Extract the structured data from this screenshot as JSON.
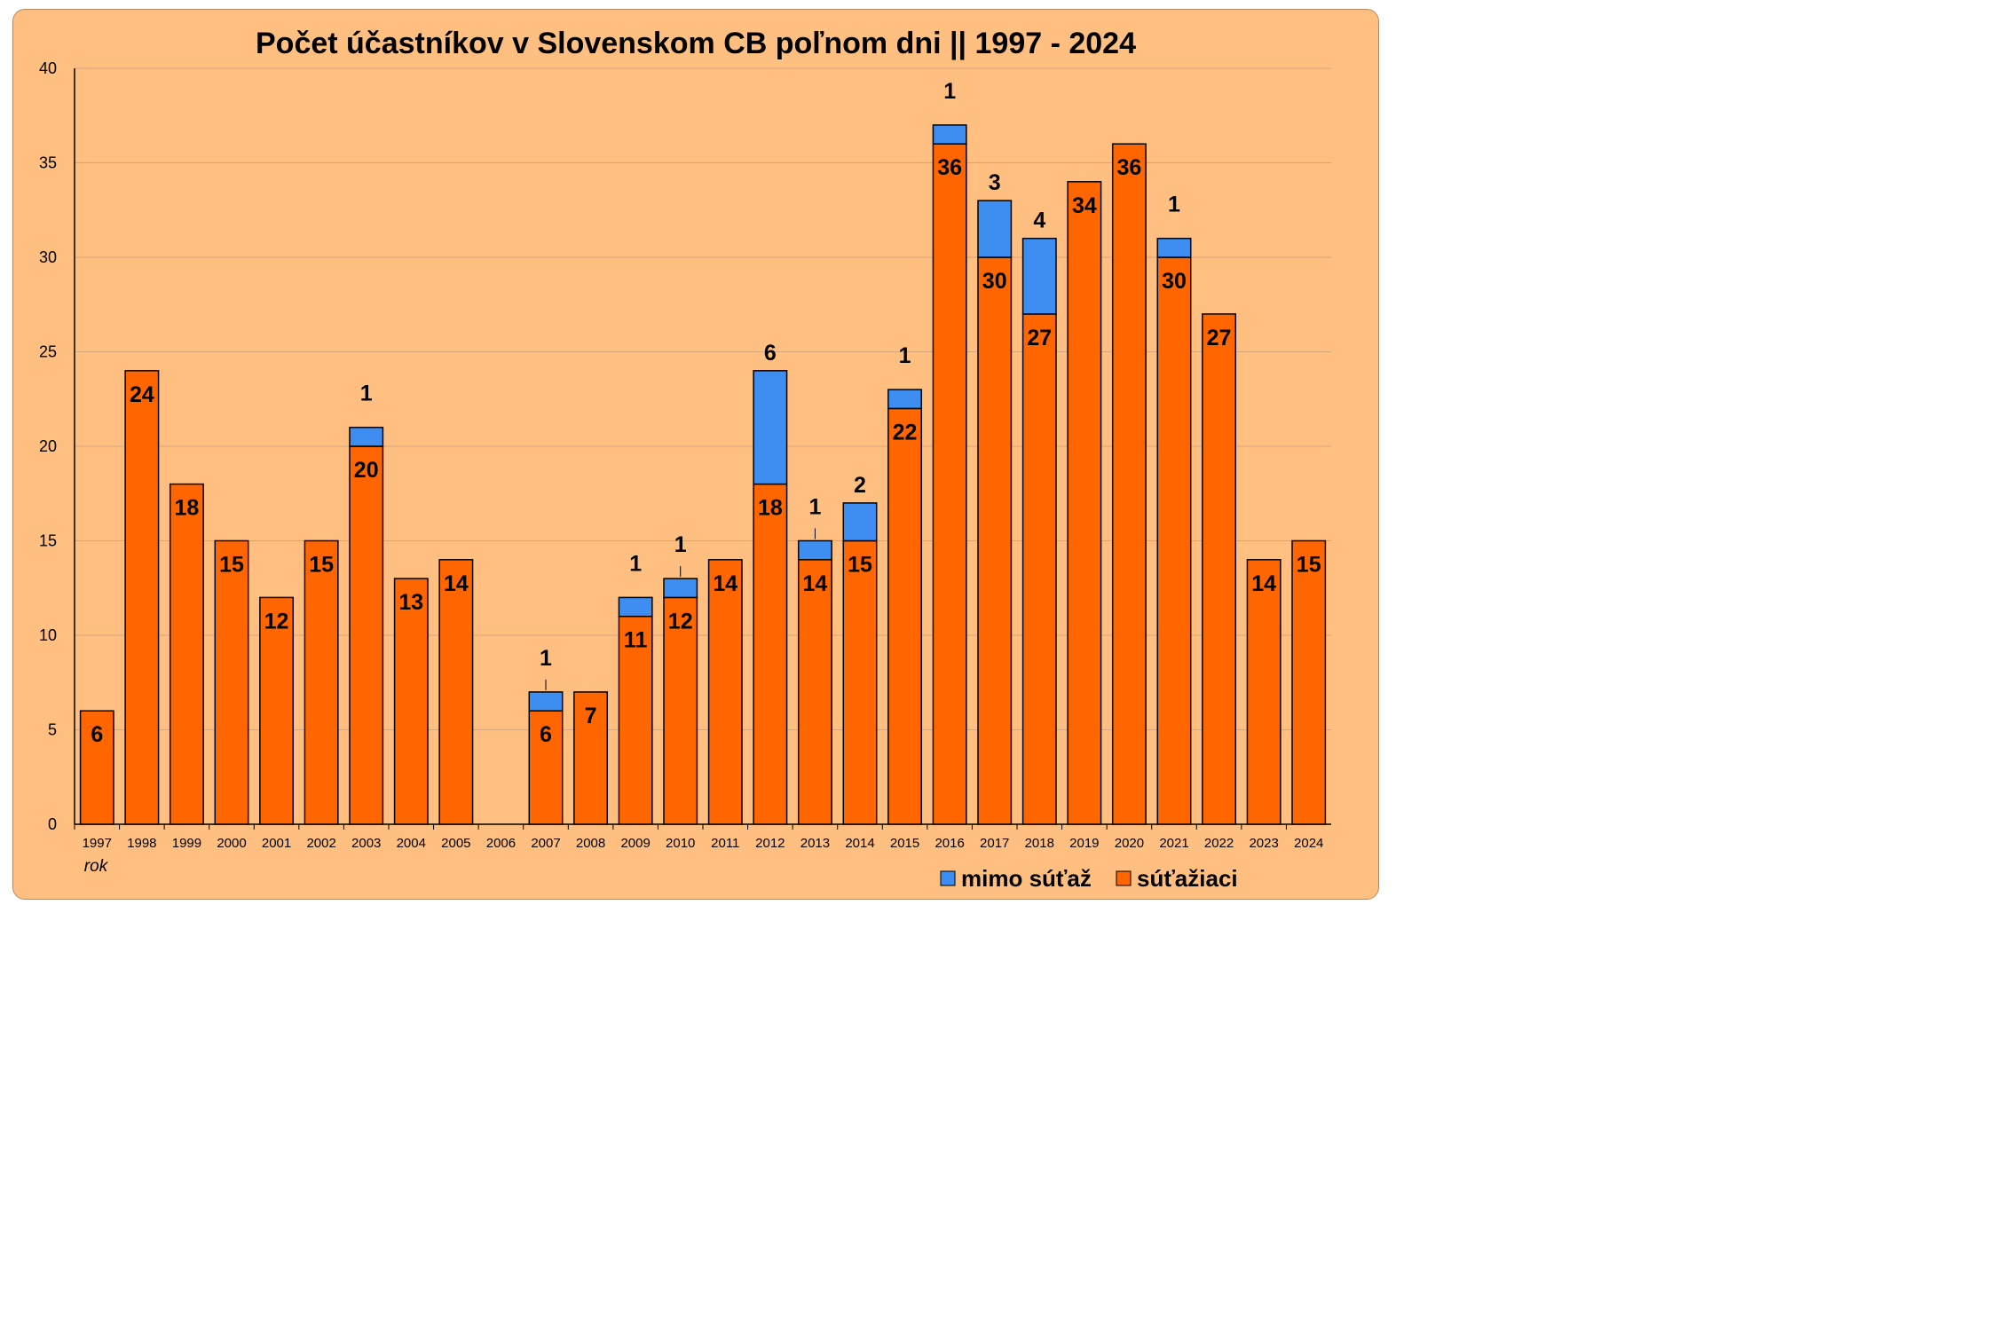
{
  "chart_data": {
    "type": "bar",
    "stacked": true,
    "title": "Počet účastníkov v Slovenskom CB poľnom dni  || 1997 - 2024",
    "xlabel": "rok",
    "ylabel": "",
    "ylim": [
      0,
      40
    ],
    "yticks": [
      "0",
      "5",
      "10",
      "15",
      "20",
      "25",
      "30",
      "35",
      "40"
    ],
    "grid": true,
    "legend_position": "bottom-right",
    "categories": [
      "1997",
      "1998",
      "1999",
      "2000",
      "2001",
      "2002",
      "2003",
      "2004",
      "2005",
      "2006",
      "2007",
      "2008",
      "2009",
      "2010",
      "2011",
      "2012",
      "2013",
      "2014",
      "2015",
      "2016",
      "2017",
      "2018",
      "2019",
      "2020",
      "2021",
      "2022",
      "2023",
      "2024"
    ],
    "series": [
      {
        "name": "súťažiaci",
        "color": "#ff6600",
        "values": [
          6,
          24,
          18,
          15,
          12,
          15,
          20,
          13,
          14,
          0,
          6,
          7,
          11,
          12,
          14,
          18,
          14,
          15,
          22,
          36,
          30,
          27,
          34,
          36,
          30,
          27,
          14,
          15
        ]
      },
      {
        "name": "mimo súťaž",
        "color": "#3d8ef0",
        "values": [
          0,
          0,
          0,
          0,
          0,
          0,
          1,
          0,
          0,
          0,
          1,
          0,
          1,
          1,
          0,
          6,
          1,
          2,
          1,
          1,
          3,
          4,
          0,
          0,
          1,
          0,
          0,
          0
        ]
      }
    ]
  }
}
